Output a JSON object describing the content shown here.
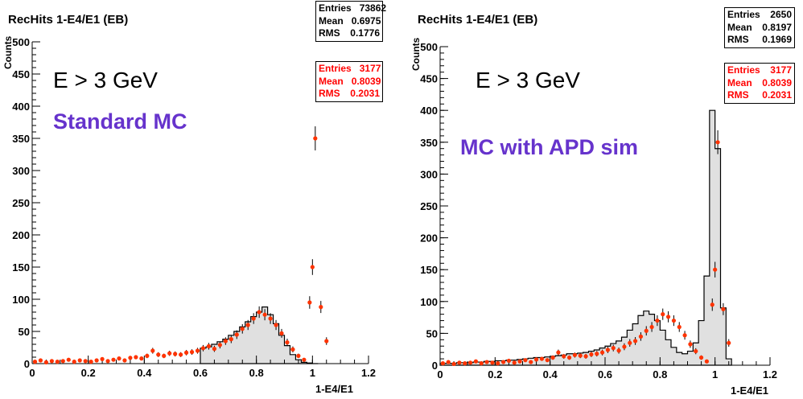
{
  "panels": [
    {
      "title": "RecHits 1-E4/E1 (EB)",
      "ecut": "E > 3 GeV",
      "label": "Standard MC",
      "stats_black": {
        "entries_label": "Entries",
        "entries": "73862",
        "mean_label": "Mean",
        "mean": "0.6975",
        "rms_label": "RMS",
        "rms": "0.1776"
      },
      "stats_red": {
        "entries_label": "Entries",
        "entries": "3177",
        "mean_label": "Mean",
        "mean": "0.8039",
        "rms_label": "RMS",
        "rms": "0.2031"
      }
    },
    {
      "title": "RecHits 1-E4/E1 (EB)",
      "ecut": "E > 3 GeV",
      "label": "MC with APD sim",
      "stats_black": {
        "entries_label": "Entries",
        "entries": "2650",
        "mean_label": "Mean",
        "mean": "0.8197",
        "rms_label": "RMS",
        "rms": "0.1969"
      },
      "stats_red": {
        "entries_label": "Entries",
        "entries": "3177",
        "mean_label": "Mean",
        "mean": "0.8039",
        "rms_label": "RMS",
        "rms": "0.2031"
      }
    }
  ],
  "colors": {
    "data_points": "#ff3300",
    "histogram_line": "#000000",
    "histogram_fill": "#e0e0e0",
    "label": "#6633cc",
    "stats_red": "#ff0000"
  },
  "chart_data": [
    {
      "type": "bar",
      "title": "RecHits 1-E4/E1 (EB)",
      "xlabel": "1-E4/E1",
      "ylabel": "Counts",
      "xlim": [
        0,
        1.2
      ],
      "ylim": [
        0,
        500
      ],
      "xticks": [
        "0",
        "0.2",
        "0.4",
        "0.6",
        "0.8",
        "1",
        "1.2"
      ],
      "yticks": [
        "0",
        "50",
        "100",
        "150",
        "200",
        "250",
        "300",
        "350",
        "400",
        "450",
        "500"
      ],
      "grid": false,
      "series": [
        {
          "role": "histogram",
          "x": [
            0.6,
            0.62,
            0.64,
            0.66,
            0.68,
            0.7,
            0.72,
            0.74,
            0.76,
            0.78,
            0.8,
            0.82,
            0.84,
            0.86,
            0.88,
            0.9,
            0.92,
            0.94,
            0.96,
            0.98,
            1.0
          ],
          "values": [
            24,
            26,
            30,
            34,
            38,
            44,
            50,
            57,
            65,
            73,
            80,
            88,
            76,
            62,
            44,
            28,
            14,
            6,
            2,
            1,
            0
          ]
        },
        {
          "role": "data",
          "x": [
            0.0,
            0.02,
            0.04,
            0.06,
            0.08,
            0.1,
            0.12,
            0.14,
            0.16,
            0.18,
            0.2,
            0.22,
            0.24,
            0.26,
            0.28,
            0.3,
            0.32,
            0.34,
            0.36,
            0.38,
            0.4,
            0.42,
            0.44,
            0.46,
            0.48,
            0.5,
            0.52,
            0.54,
            0.56,
            0.58,
            0.6,
            0.62,
            0.64,
            0.66,
            0.68,
            0.7,
            0.72,
            0.74,
            0.76,
            0.78,
            0.8,
            0.82,
            0.84,
            0.86,
            0.88,
            0.9,
            0.92,
            0.94,
            0.96,
            0.98,
            0.99,
            1.0,
            1.02,
            1.04
          ],
          "values": [
            3,
            5,
            2,
            4,
            3,
            4,
            6,
            3,
            5,
            4,
            3,
            5,
            7,
            4,
            6,
            8,
            5,
            9,
            10,
            8,
            12,
            20,
            14,
            12,
            16,
            15,
            14,
            17,
            18,
            20,
            24,
            27,
            23,
            29,
            35,
            38,
            45,
            54,
            60,
            70,
            80,
            76,
            70,
            60,
            47,
            33,
            22,
            12,
            6,
            95,
            150,
            350,
            88,
            35
          ]
        }
      ]
    },
    {
      "type": "bar",
      "title": "RecHits 1-E4/E1 (EB)",
      "xlabel": "1-E4/E1",
      "ylabel": "Counts",
      "xlim": [
        0,
        1.2
      ],
      "ylim": [
        0,
        500
      ],
      "xticks": [
        "0",
        "0.2",
        "0.4",
        "0.6",
        "0.8",
        "1",
        "1.2"
      ],
      "yticks": [
        "0",
        "50",
        "100",
        "150",
        "200",
        "250",
        "300",
        "350",
        "400",
        "450",
        "500"
      ],
      "grid": false,
      "series": [
        {
          "role": "histogram",
          "x": [
            0.0,
            0.02,
            0.04,
            0.06,
            0.08,
            0.1,
            0.12,
            0.14,
            0.16,
            0.18,
            0.2,
            0.22,
            0.24,
            0.26,
            0.28,
            0.3,
            0.32,
            0.34,
            0.36,
            0.38,
            0.4,
            0.42,
            0.44,
            0.46,
            0.48,
            0.5,
            0.52,
            0.54,
            0.56,
            0.58,
            0.6,
            0.62,
            0.64,
            0.66,
            0.68,
            0.7,
            0.72,
            0.74,
            0.76,
            0.78,
            0.8,
            0.82,
            0.84,
            0.86,
            0.88,
            0.9,
            0.92,
            0.94,
            0.96,
            0.98,
            1.0,
            1.02,
            1.04
          ],
          "values": [
            3,
            3,
            3,
            4,
            4,
            4,
            5,
            5,
            6,
            6,
            7,
            7,
            8,
            8,
            9,
            10,
            11,
            12,
            12,
            13,
            14,
            15,
            16,
            18,
            18,
            19,
            20,
            22,
            24,
            27,
            30,
            34,
            38,
            44,
            55,
            65,
            78,
            85,
            80,
            70,
            55,
            40,
            28,
            20,
            18,
            22,
            35,
            70,
            140,
            400,
            340,
            90,
            10
          ]
        },
        {
          "role": "data",
          "x": [
            0.0,
            0.02,
            0.04,
            0.06,
            0.08,
            0.1,
            0.12,
            0.14,
            0.16,
            0.18,
            0.2,
            0.22,
            0.24,
            0.26,
            0.28,
            0.3,
            0.32,
            0.34,
            0.36,
            0.38,
            0.4,
            0.42,
            0.44,
            0.46,
            0.48,
            0.5,
            0.52,
            0.54,
            0.56,
            0.58,
            0.6,
            0.62,
            0.64,
            0.66,
            0.68,
            0.7,
            0.72,
            0.74,
            0.76,
            0.78,
            0.8,
            0.82,
            0.84,
            0.86,
            0.88,
            0.9,
            0.92,
            0.94,
            0.96,
            0.98,
            0.99,
            1.0,
            1.02,
            1.04
          ],
          "values": [
            3,
            5,
            2,
            4,
            3,
            4,
            6,
            3,
            5,
            4,
            3,
            5,
            7,
            4,
            6,
            8,
            5,
            9,
            10,
            8,
            12,
            20,
            14,
            12,
            16,
            15,
            14,
            17,
            18,
            20,
            24,
            27,
            23,
            29,
            35,
            38,
            45,
            54,
            60,
            70,
            80,
            76,
            70,
            60,
            47,
            33,
            22,
            12,
            6,
            95,
            150,
            350,
            88,
            35
          ]
        }
      ]
    }
  ]
}
